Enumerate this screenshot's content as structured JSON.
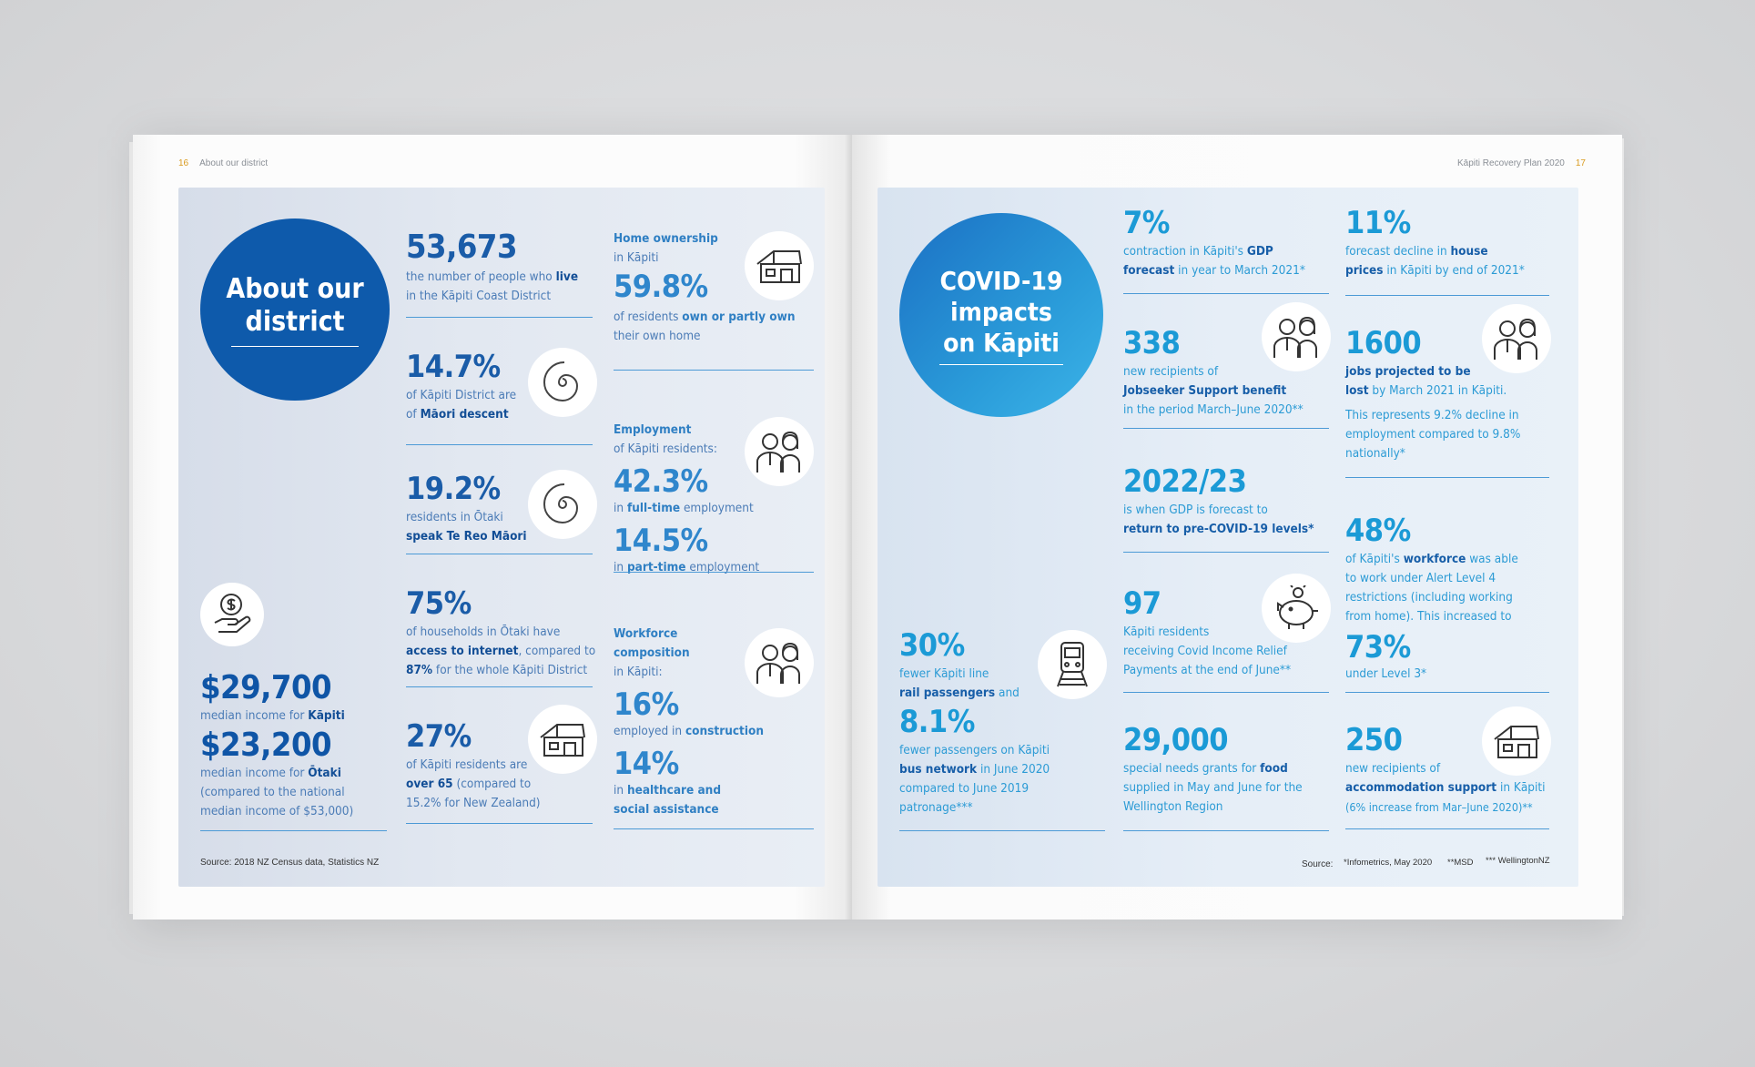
{
  "left_page": {
    "page_number": "16",
    "section_name": "About our district",
    "title_circle": {
      "line1": "About our",
      "line2": "district"
    },
    "stats": {
      "population": {
        "value": "53,673",
        "d1": "the number of people who ",
        "d1b": "live",
        "d2": "in the Kāpiti Coast District"
      },
      "maori": {
        "value": "14.7%",
        "d1": "of Kāpiti District are",
        "d2": "of ",
        "d2b": "Māori descent"
      },
      "tereo": {
        "value": "19.2%",
        "d1": "residents in Ōtaki",
        "d2b": "speak Te Reo Māori"
      },
      "internet": {
        "value": "75%",
        "d1": "of households in Ōtaki have",
        "d2b": "access to internet",
        "d2": ", compared to",
        "d3b": "87%",
        "d3": " for the whole Kāpiti District"
      },
      "over65": {
        "value": "27%",
        "d1": "of Kāpiti residents are",
        "d2b": "over 65",
        "d2": " (compared to",
        "d3": "15.2% for New Zealand)"
      }
    },
    "home_ownership": {
      "head": "Home ownership",
      "sub": "in Kāpiti",
      "value": "59.8%",
      "d1": "of residents ",
      "d1b": "own or partly own",
      "d2": "their own home"
    },
    "employment": {
      "head": "Employment",
      "sub": "of Kāpiti residents:",
      "v1": "42.3%",
      "d1": "in ",
      "d1b": "full-time",
      "d1c": " employment",
      "v2": "14.5%",
      "d2": "in ",
      "d2b": "part-time",
      "d2c": " employment"
    },
    "workforce": {
      "head1": "Workforce",
      "head2": "composition",
      "sub": "in Kāpiti:",
      "v1": "16%",
      "d1": "employed in ",
      "d1b": "construction",
      "v2": "14%",
      "d2": "in ",
      "d2b": "healthcare and",
      "d3b": "social assistance"
    },
    "income": {
      "v1": "$29,700",
      "d1": "median income for ",
      "d1b": "Kāpiti",
      "v2": "$23,200",
      "d2": "median income for ",
      "d2b": "Ōtaki",
      "d3": "(compared to the national",
      "d4": "median income of $53,000)"
    },
    "source": "Source: 2018 NZ Census data, Statistics NZ"
  },
  "right_page": {
    "page_number": "17",
    "running_title": "Kāpiti Recovery Plan 2020",
    "title_circle": {
      "line1": "COVID-19",
      "line2": "impacts",
      "line3": "on Kāpiti"
    },
    "gdp": {
      "value": "7%",
      "d1": "contraction in Kāpiti's ",
      "d1b": "GDP",
      "d2b": "forecast",
      "d2": " in year to March 2021*"
    },
    "house": {
      "value": "11%",
      "d1": "forecast decline in ",
      "d1b": "house",
      "d2b": "prices",
      "d2": " in Kāpiti by end of 2021*"
    },
    "jobseeker": {
      "value": "338",
      "d1": "new recipients of",
      "d2b": "Jobseeker Support benefit",
      "d3": "in the period March–June 2020**"
    },
    "jobs": {
      "value": "1600",
      "d1b": "jobs projected to be",
      "d2b": "lost",
      "d2": " by March 2021 in Kāpiti.",
      "d3": "This represents 9.2% decline in",
      "d4": "employment compared to 9.8%",
      "d5": "nationally*"
    },
    "recovery": {
      "value": "2022/23",
      "d1": "is when GDP is forecast to",
      "d2b": "return to pre-COVID-19 levels*"
    },
    "workforce": {
      "value": "48%",
      "d1": "of Kāpiti's ",
      "d1b": "workforce",
      "d1c": " was able",
      "d2": "to work under Alert Level 4",
      "d3": "restrictions (including working",
      "d4": "from home). This increased to",
      "v2": "73%",
      "d5": "under Level 3*"
    },
    "relief": {
      "value": "97",
      "d1": "Kāpiti residents",
      "d2": "receiving Covid Income Relief",
      "d3": "Payments at the end of June**"
    },
    "rail": {
      "value": "30%",
      "d1": "fewer Kāpiti line",
      "d2b": "rail passengers",
      "d2": " and",
      "v2": "8.1%",
      "d3": "fewer passengers on Kāpiti",
      "d4b": "bus network",
      "d4": " in June 2020",
      "d5": "compared to June 2019",
      "d6": "patronage***"
    },
    "grants": {
      "value": "29,000",
      "d1": "special needs grants for ",
      "d1b": "food",
      "d2": "supplied in May and June for the",
      "d3": "Wellington Region"
    },
    "accommodation": {
      "value": "250",
      "d1": "new recipients of",
      "d2b": "accommodation support",
      "d2": " in Kāpiti",
      "d3": "(6% increase from Mar–June 2020)**"
    },
    "source_label": "Source:",
    "source1": "*Infometrics, May 2020",
    "source2": "**MSD",
    "source3": "*** WellingtonNZ"
  },
  "colors": {
    "dark_blue": "#1a5ca8",
    "light_blue": "#1b9ad6",
    "accent_orange": "#d99a1e"
  }
}
